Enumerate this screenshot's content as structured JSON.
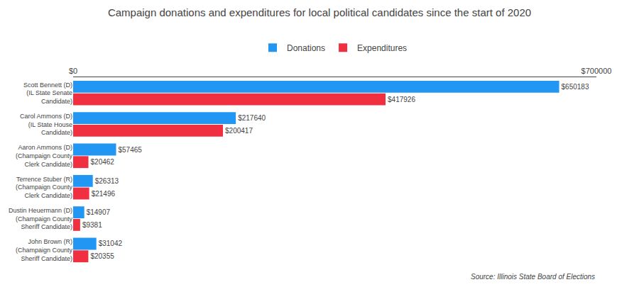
{
  "chart_data": {
    "type": "bar",
    "orientation": "horizontal",
    "title": "Campaign donations and expenditures for local political candidates since the start of 2020",
    "categories": [
      "Scott Bennett (D)\n(IL State Senate\nCandidate)",
      "Carol Ammons (D)\n(IL State House\nCandidate)",
      "Aaron Ammons (D)\n(Champaign County\nClerk Candidate)",
      "Terrence Stuber (R)\n(Champaign County\nClerk Candidate)",
      "Dustin Heuermann (D)\n(Champaign County\nSheriff Candidate)",
      "John Brown (R)\n(Champaign County\nSheriff Candidate)"
    ],
    "series": [
      {
        "name": "Donations",
        "color": "#2196F3",
        "values": [
          650183,
          217640,
          57465,
          26313,
          14907,
          31042
        ],
        "value_labels": [
          "$650183",
          "$217640",
          "$57465",
          "$26313",
          "$14907",
          "$31042"
        ]
      },
      {
        "name": "Expenditures",
        "color": "#F03040",
        "values": [
          417926,
          200417,
          20462,
          21496,
          9381,
          20355
        ],
        "value_labels": [
          "$417926",
          "$200417",
          "$20462",
          "$21496",
          "$9381",
          "$20355"
        ]
      }
    ],
    "xlim": [
      0,
      700000
    ],
    "xticks": [
      {
        "value": 0,
        "label": "$0"
      },
      {
        "value": 700000,
        "label": "$700000"
      }
    ],
    "grid": true,
    "legend": "top",
    "data_labels": true,
    "annotations": [
      "Source: Illinois State Board of Elections"
    ]
  }
}
